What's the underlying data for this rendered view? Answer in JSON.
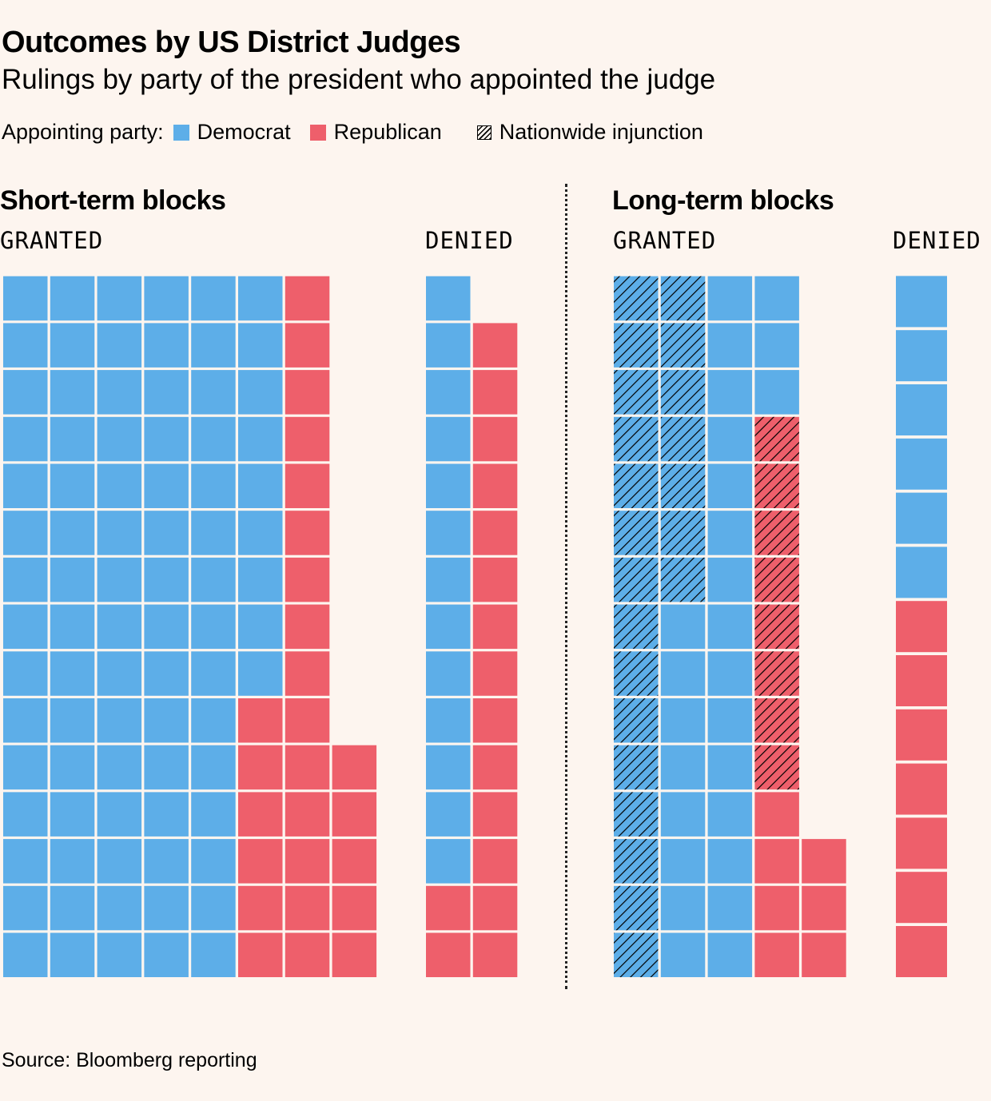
{
  "title": "Outcomes by US District Judges",
  "subtitle": "Rulings by party of the president who appointed the judge",
  "legend": {
    "prefix": "Appointing party:",
    "democrat": "Democrat",
    "republican": "Republican",
    "nationwide": "Nationwide injunction"
  },
  "colors": {
    "democrat": "#5daee8",
    "republican": "#ee5f6b",
    "background": "#fdf5ef"
  },
  "source": "Source: Bloomberg reporting",
  "chart_data": [
    {
      "type": "waffle",
      "title": "Short-term blocks",
      "groups": [
        {
          "label": "GRANTED",
          "columns": [
            {
              "dem": 15,
              "dem_nw": 0,
              "rep": 0,
              "rep_nw": 0
            },
            {
              "dem": 15,
              "dem_nw": 0,
              "rep": 0,
              "rep_nw": 0
            },
            {
              "dem": 15,
              "dem_nw": 0,
              "rep": 0,
              "rep_nw": 0
            },
            {
              "dem": 15,
              "dem_nw": 0,
              "rep": 0,
              "rep_nw": 0
            },
            {
              "dem": 15,
              "dem_nw": 0,
              "rep": 0,
              "rep_nw": 0
            },
            {
              "dem": 9,
              "dem_nw": 0,
              "rep": 6,
              "rep_nw": 0
            },
            {
              "dem": 0,
              "dem_nw": 0,
              "rep": 15,
              "rep_nw": 0
            },
            {
              "dem": 0,
              "dem_nw": 0,
              "rep": 5,
              "rep_nw": 0
            }
          ]
        },
        {
          "label": "DENIED",
          "columns": [
            {
              "dem": 13,
              "dem_nw": 0,
              "rep": 2,
              "rep_nw": 0
            },
            {
              "dem": 0,
              "dem_nw": 0,
              "rep": 14,
              "rep_nw": 0
            }
          ]
        }
      ],
      "totals": {
        "granted": {
          "democrat": 84,
          "republican": 26
        },
        "denied": {
          "democrat": 13,
          "republican": 16
        }
      }
    },
    {
      "type": "waffle",
      "title": "Long-term blocks",
      "groups": [
        {
          "label": "GRANTED",
          "columns": [
            {
              "dem": 0,
              "dem_nw": 15,
              "rep": 0,
              "rep_nw": 0
            },
            {
              "dem": 8,
              "dem_nw": 7,
              "rep": 0,
              "rep_nw": 0
            },
            {
              "dem": 15,
              "dem_nw": 0,
              "rep": 0,
              "rep_nw": 0
            },
            {
              "dem": 3,
              "dem_nw": 0,
              "rep": 4,
              "rep_nw": 8
            },
            {
              "dem": 0,
              "dem_nw": 0,
              "rep": 3,
              "rep_nw": 0
            }
          ]
        },
        {
          "label": "DENIED",
          "columns": [
            {
              "dem": 6,
              "dem_nw": 0,
              "rep": 7,
              "rep_nw": 0
            }
          ]
        }
      ],
      "totals": {
        "granted": {
          "democrat": 26,
          "democrat_nationwide": 22,
          "republican": 7,
          "republican_nationwide": 8
        },
        "denied": {
          "democrat": 6,
          "republican": 7
        }
      }
    }
  ]
}
